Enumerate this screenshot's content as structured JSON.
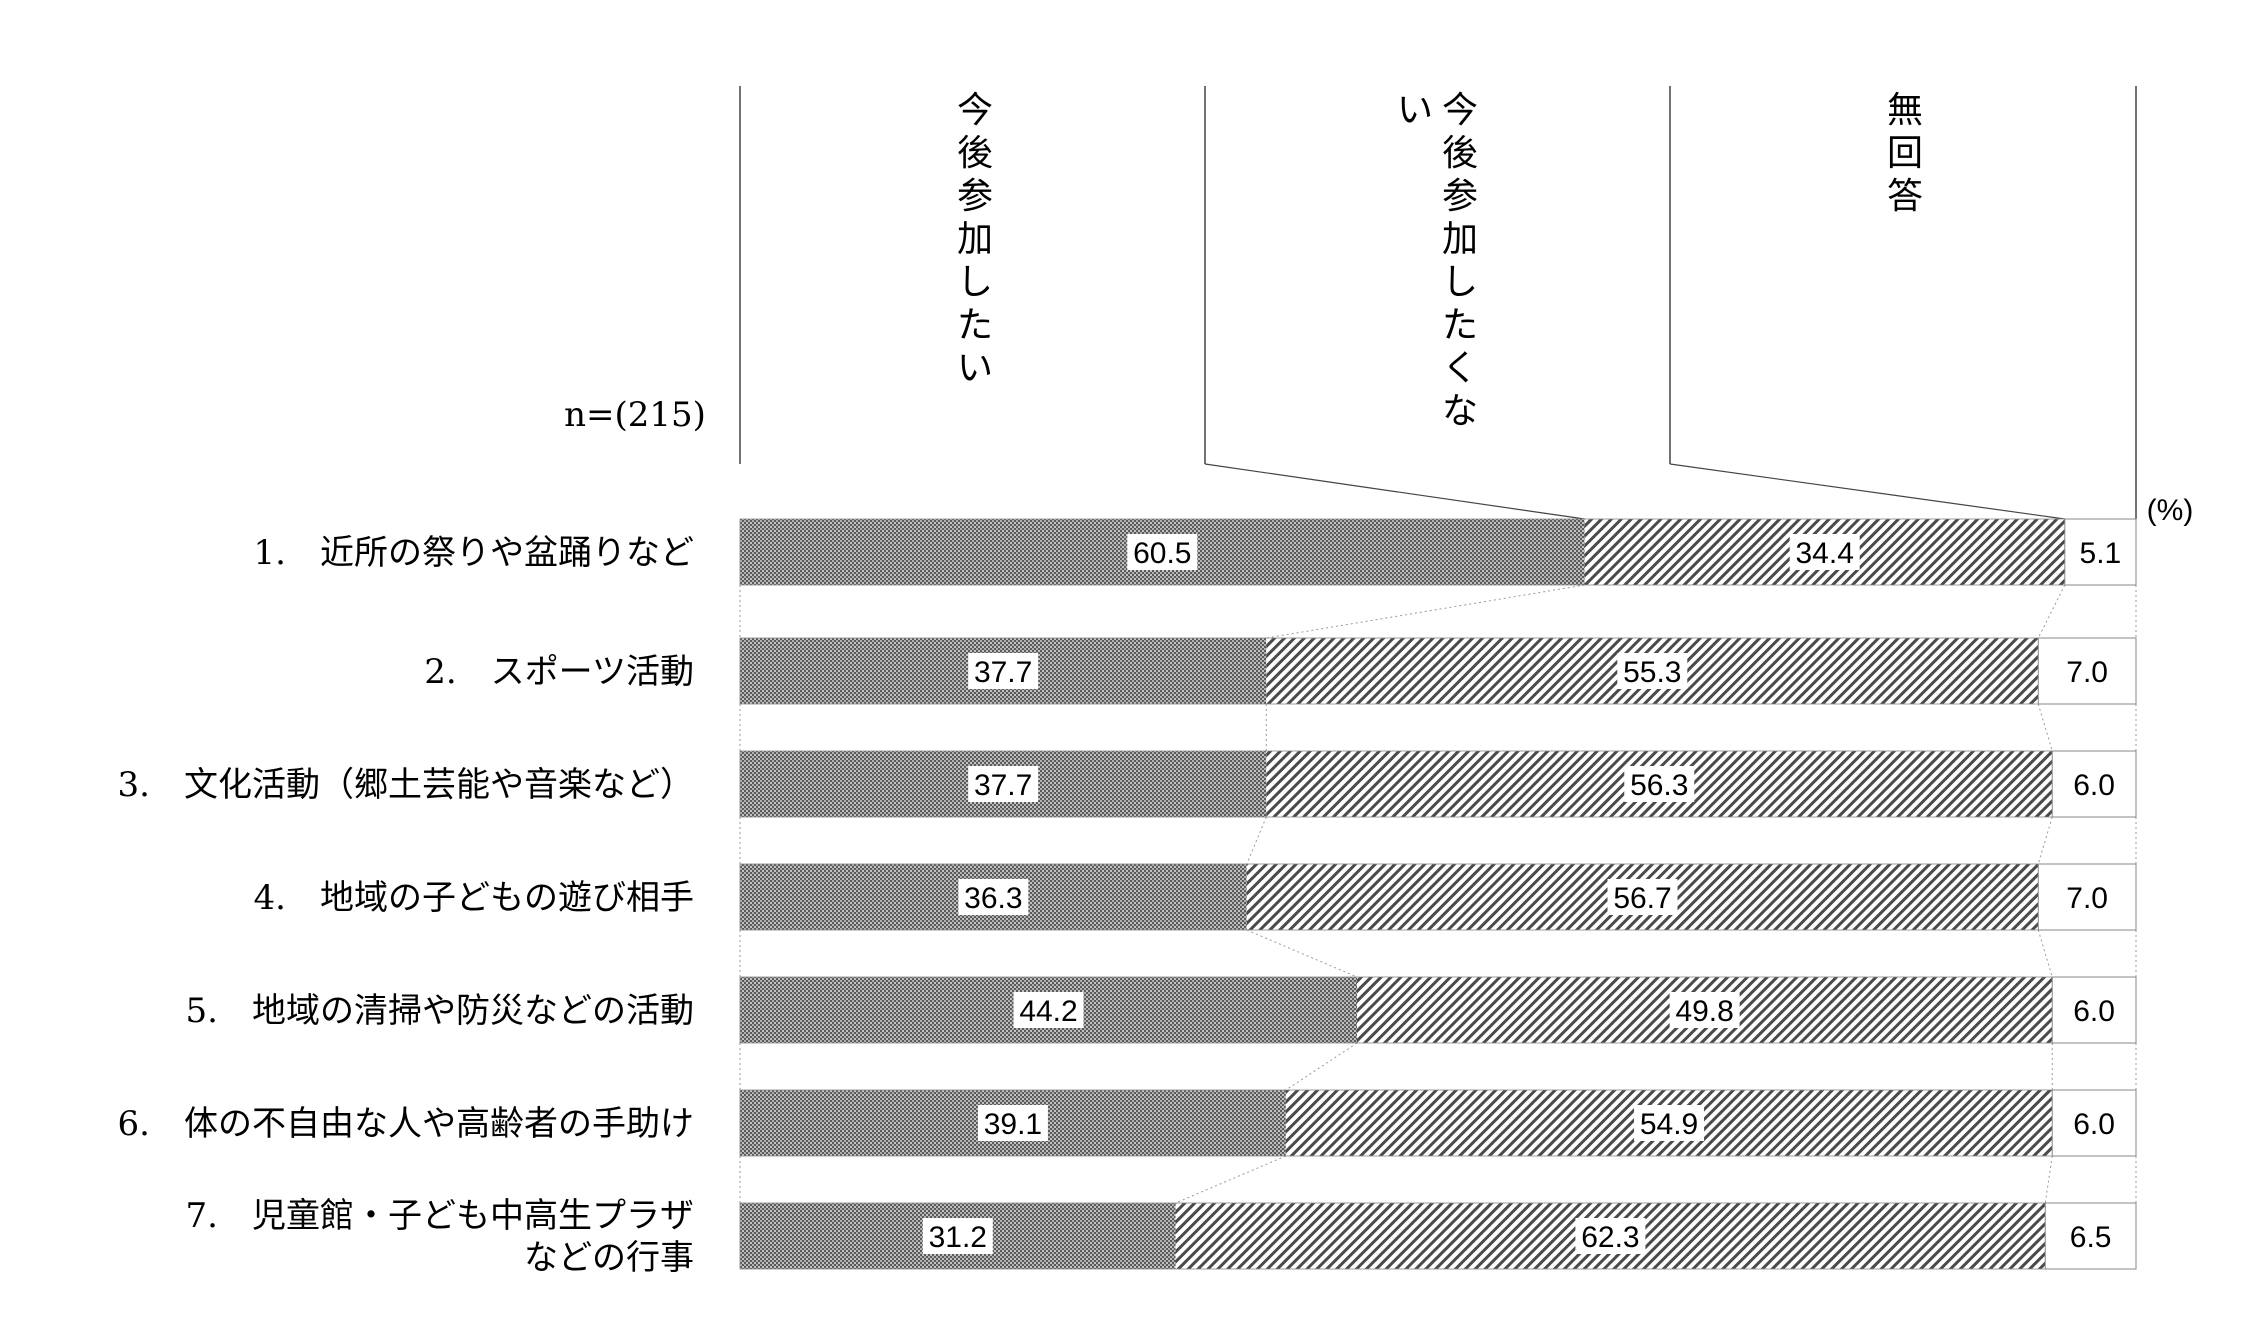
{
  "sample_label": "n=(215)",
  "unit_label": "(%)",
  "chart_data": {
    "type": "bar",
    "orientation": "horizontal",
    "stacked": true,
    "xlim": [
      0,
      100
    ],
    "categories": [
      "1.　近所の祭りや盆踊りなど",
      "2.　スポーツ活動",
      "3.　文化活動（郷土芸能や音楽など）",
      "4.　地域の子どもの遊び相手",
      "5.　地域の清掃や防災などの活動",
      "6.　体の不自由な人や高齢者の手助け",
      "7.　児童館・子ども中高生プラザ\nなどの行事"
    ],
    "series": [
      {
        "name": "今後参加したい",
        "values": [
          60.5,
          37.7,
          37.7,
          36.3,
          44.2,
          39.1,
          31.2
        ],
        "pattern": "dense-dots"
      },
      {
        "name": "今後参加したくない",
        "values": [
          34.4,
          55.3,
          56.3,
          56.7,
          49.8,
          54.9,
          62.3
        ],
        "pattern": "diagonal-hatch"
      },
      {
        "name": "無回答",
        "values": [
          5.1,
          7.0,
          6.0,
          7.0,
          6.0,
          6.0,
          6.5
        ],
        "pattern": "none"
      }
    ],
    "legend": "top",
    "grid": false
  }
}
